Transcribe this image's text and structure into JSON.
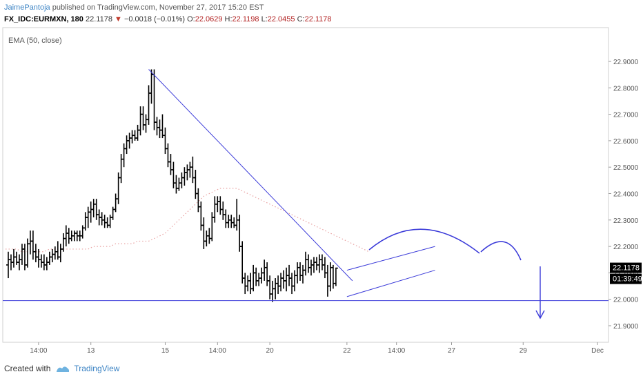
{
  "header": {
    "author": "JaimePantoja",
    "published": "published on TradingView.com, November 27, 2017 15:20 EST"
  },
  "quote": {
    "symbol": "FX_IDC:EURMXN, 180",
    "last": "22.1178",
    "change": "−0.0018 (−0.01%)",
    "o_label": "O:",
    "o": "22.0629",
    "h_label": "H:",
    "h": "22.1198",
    "l_label": "L:",
    "l": "22.0455",
    "c_label": "C:",
    "c": "22.1178"
  },
  "indicator_label": "EMA (50, close)",
  "price_tag": "22.1178",
  "time_tag": "01:39:49",
  "footer": {
    "created": "Created with",
    "brand": "TradingView"
  },
  "colors": {
    "bar": "#000000",
    "drawing": "#3b3bd9",
    "ema": "#e8a0a0",
    "axis_text": "#555555",
    "grid": "#e6e6e6"
  },
  "chart_data": {
    "type": "ohlc",
    "title": "",
    "xlabel": "",
    "ylabel": "",
    "ylim": [
      21.85,
      22.95
    ],
    "y_ticks": [
      "22.9000",
      "22.8000",
      "22.7000",
      "22.6000",
      "22.5000",
      "22.4000",
      "22.3000",
      "22.2000",
      "22.1000",
      "22.0000",
      "21.9000"
    ],
    "x_ticks": [
      {
        "label": "14:00",
        "i": 12
      },
      {
        "label": "13",
        "i": 31
      },
      {
        "label": "15",
        "i": 58
      },
      {
        "label": "14:00",
        "i": 77
      },
      {
        "label": "20",
        "i": 96
      },
      {
        "label": "22",
        "i": 124
      },
      {
        "label": "14:00",
        "i": 142
      },
      {
        "label": "27",
        "i": 162
      },
      {
        "label": "29",
        "i": 188
      },
      {
        "label": "Dec",
        "i": 215
      }
    ],
    "bars": [
      {
        "o": 22.13,
        "h": 22.18,
        "l": 22.08,
        "c": 22.15
      },
      {
        "o": 22.15,
        "h": 22.17,
        "l": 22.11,
        "c": 22.14
      },
      {
        "o": 22.14,
        "h": 22.19,
        "l": 22.12,
        "c": 22.16
      },
      {
        "o": 22.16,
        "h": 22.18,
        "l": 22.13,
        "c": 22.14
      },
      {
        "o": 22.14,
        "h": 22.17,
        "l": 22.11,
        "c": 22.15
      },
      {
        "o": 22.15,
        "h": 22.21,
        "l": 22.13,
        "c": 22.19
      },
      {
        "o": 22.19,
        "h": 22.21,
        "l": 22.11,
        "c": 22.13
      },
      {
        "o": 22.13,
        "h": 22.23,
        "l": 22.12,
        "c": 22.21
      },
      {
        "o": 22.21,
        "h": 22.26,
        "l": 22.17,
        "c": 22.22
      },
      {
        "o": 22.22,
        "h": 22.26,
        "l": 22.15,
        "c": 22.18
      },
      {
        "o": 22.18,
        "h": 22.21,
        "l": 22.14,
        "c": 22.16
      },
      {
        "o": 22.16,
        "h": 22.19,
        "l": 22.12,
        "c": 22.15
      },
      {
        "o": 22.15,
        "h": 22.17,
        "l": 22.12,
        "c": 22.14
      },
      {
        "o": 22.14,
        "h": 22.17,
        "l": 22.11,
        "c": 22.13
      },
      {
        "o": 22.13,
        "h": 22.16,
        "l": 22.11,
        "c": 22.14
      },
      {
        "o": 22.14,
        "h": 22.18,
        "l": 22.13,
        "c": 22.16
      },
      {
        "o": 22.16,
        "h": 22.19,
        "l": 22.14,
        "c": 22.17
      },
      {
        "o": 22.17,
        "h": 22.2,
        "l": 22.15,
        "c": 22.18
      },
      {
        "o": 22.18,
        "h": 22.22,
        "l": 22.15,
        "c": 22.16
      },
      {
        "o": 22.16,
        "h": 22.21,
        "l": 22.14,
        "c": 22.19
      },
      {
        "o": 22.19,
        "h": 22.25,
        "l": 22.18,
        "c": 22.23
      },
      {
        "o": 22.23,
        "h": 22.28,
        "l": 22.2,
        "c": 22.25
      },
      {
        "o": 22.25,
        "h": 22.27,
        "l": 22.21,
        "c": 22.23
      },
      {
        "o": 22.23,
        "h": 22.26,
        "l": 22.22,
        "c": 22.24
      },
      {
        "o": 22.24,
        "h": 22.26,
        "l": 22.22,
        "c": 22.25
      },
      {
        "o": 22.25,
        "h": 22.26,
        "l": 22.22,
        "c": 22.24
      },
      {
        "o": 22.24,
        "h": 22.26,
        "l": 22.22,
        "c": 22.24
      },
      {
        "o": 22.24,
        "h": 22.28,
        "l": 22.23,
        "c": 22.27
      },
      {
        "o": 22.27,
        "h": 22.33,
        "l": 22.26,
        "c": 22.31
      },
      {
        "o": 22.31,
        "h": 22.35,
        "l": 22.27,
        "c": 22.33
      },
      {
        "o": 22.33,
        "h": 22.37,
        "l": 22.29,
        "c": 22.34
      },
      {
        "o": 22.34,
        "h": 22.38,
        "l": 22.31,
        "c": 22.36
      },
      {
        "o": 22.36,
        "h": 22.38,
        "l": 22.3,
        "c": 22.32
      },
      {
        "o": 22.32,
        "h": 22.34,
        "l": 22.28,
        "c": 22.31
      },
      {
        "o": 22.31,
        "h": 22.33,
        "l": 22.28,
        "c": 22.3
      },
      {
        "o": 22.3,
        "h": 22.32,
        "l": 22.27,
        "c": 22.29
      },
      {
        "o": 22.29,
        "h": 22.31,
        "l": 22.27,
        "c": 22.28
      },
      {
        "o": 22.28,
        "h": 22.32,
        "l": 22.27,
        "c": 22.31
      },
      {
        "o": 22.31,
        "h": 22.35,
        "l": 22.3,
        "c": 22.34
      },
      {
        "o": 22.34,
        "h": 22.4,
        "l": 22.33,
        "c": 22.38
      },
      {
        "o": 22.38,
        "h": 22.48,
        "l": 22.36,
        "c": 22.46
      },
      {
        "o": 22.46,
        "h": 22.55,
        "l": 22.44,
        "c": 22.53
      },
      {
        "o": 22.53,
        "h": 22.59,
        "l": 22.5,
        "c": 22.57
      },
      {
        "o": 22.57,
        "h": 22.62,
        "l": 22.55,
        "c": 22.6
      },
      {
        "o": 22.6,
        "h": 22.63,
        "l": 22.57,
        "c": 22.61
      },
      {
        "o": 22.61,
        "h": 22.64,
        "l": 22.59,
        "c": 22.62
      },
      {
        "o": 22.62,
        "h": 22.64,
        "l": 22.6,
        "c": 22.61
      },
      {
        "o": 22.61,
        "h": 22.66,
        "l": 22.6,
        "c": 22.64
      },
      {
        "o": 22.64,
        "h": 22.73,
        "l": 22.62,
        "c": 22.7
      },
      {
        "o": 22.7,
        "h": 22.73,
        "l": 22.64,
        "c": 22.66
      },
      {
        "o": 22.66,
        "h": 22.7,
        "l": 22.63,
        "c": 22.68
      },
      {
        "o": 22.68,
        "h": 22.81,
        "l": 22.66,
        "c": 22.78
      },
      {
        "o": 22.78,
        "h": 22.87,
        "l": 22.74,
        "c": 22.85
      },
      {
        "o": 22.85,
        "h": 22.87,
        "l": 22.64,
        "c": 22.67
      },
      {
        "o": 22.67,
        "h": 22.69,
        "l": 22.62,
        "c": 22.65
      },
      {
        "o": 22.65,
        "h": 22.68,
        "l": 22.61,
        "c": 22.64
      },
      {
        "o": 22.64,
        "h": 22.7,
        "l": 22.61,
        "c": 22.62
      },
      {
        "o": 22.62,
        "h": 22.65,
        "l": 22.55,
        "c": 22.57
      },
      {
        "o": 22.57,
        "h": 22.59,
        "l": 22.5,
        "c": 22.52
      },
      {
        "o": 22.52,
        "h": 22.55,
        "l": 22.47,
        "c": 22.49
      },
      {
        "o": 22.49,
        "h": 22.52,
        "l": 22.42,
        "c": 22.44
      },
      {
        "o": 22.44,
        "h": 22.47,
        "l": 22.4,
        "c": 22.42
      },
      {
        "o": 22.42,
        "h": 22.46,
        "l": 22.41,
        "c": 22.44
      },
      {
        "o": 22.44,
        "h": 22.48,
        "l": 22.42,
        "c": 22.46
      },
      {
        "o": 22.46,
        "h": 22.5,
        "l": 22.43,
        "c": 22.48
      },
      {
        "o": 22.48,
        "h": 22.51,
        "l": 22.45,
        "c": 22.49
      },
      {
        "o": 22.49,
        "h": 22.52,
        "l": 22.46,
        "c": 22.5
      },
      {
        "o": 22.5,
        "h": 22.54,
        "l": 22.44,
        "c": 22.46
      },
      {
        "o": 22.46,
        "h": 22.49,
        "l": 22.38,
        "c": 22.4
      },
      {
        "o": 22.4,
        "h": 22.42,
        "l": 22.33,
        "c": 22.35
      },
      {
        "o": 22.35,
        "h": 22.37,
        "l": 22.26,
        "c": 22.28
      },
      {
        "o": 22.28,
        "h": 22.31,
        "l": 22.19,
        "c": 22.22
      },
      {
        "o": 22.22,
        "h": 22.26,
        "l": 22.2,
        "c": 22.24
      },
      {
        "o": 22.24,
        "h": 22.27,
        "l": 22.21,
        "c": 22.23
      },
      {
        "o": 22.23,
        "h": 22.33,
        "l": 22.22,
        "c": 22.31
      },
      {
        "o": 22.31,
        "h": 22.39,
        "l": 22.29,
        "c": 22.36
      },
      {
        "o": 22.36,
        "h": 22.39,
        "l": 22.33,
        "c": 22.37
      },
      {
        "o": 22.37,
        "h": 22.39,
        "l": 22.32,
        "c": 22.34
      },
      {
        "o": 22.34,
        "h": 22.37,
        "l": 22.3,
        "c": 22.32
      },
      {
        "o": 22.32,
        "h": 22.34,
        "l": 22.27,
        "c": 22.29
      },
      {
        "o": 22.29,
        "h": 22.32,
        "l": 22.27,
        "c": 22.3
      },
      {
        "o": 22.3,
        "h": 22.32,
        "l": 22.27,
        "c": 22.29
      },
      {
        "o": 22.29,
        "h": 22.31,
        "l": 22.27,
        "c": 22.28
      },
      {
        "o": 22.28,
        "h": 22.38,
        "l": 22.26,
        "c": 22.3
      },
      {
        "o": 22.3,
        "h": 22.32,
        "l": 22.18,
        "c": 22.2
      },
      {
        "o": 22.2,
        "h": 22.22,
        "l": 22.06,
        "c": 22.08
      },
      {
        "o": 22.08,
        "h": 22.1,
        "l": 22.02,
        "c": 22.05
      },
      {
        "o": 22.05,
        "h": 22.09,
        "l": 22.03,
        "c": 22.07
      },
      {
        "o": 22.07,
        "h": 22.1,
        "l": 22.02,
        "c": 22.04
      },
      {
        "o": 22.04,
        "h": 22.13,
        "l": 22.03,
        "c": 22.1
      },
      {
        "o": 22.1,
        "h": 22.12,
        "l": 22.05,
        "c": 22.07
      },
      {
        "o": 22.07,
        "h": 22.1,
        "l": 22.05,
        "c": 22.08
      },
      {
        "o": 22.08,
        "h": 22.12,
        "l": 22.06,
        "c": 22.1
      },
      {
        "o": 22.1,
        "h": 22.15,
        "l": 22.07,
        "c": 22.12
      },
      {
        "o": 22.12,
        "h": 22.14,
        "l": 22.05,
        "c": 22.07
      },
      {
        "o": 22.07,
        "h": 22.09,
        "l": 22.0,
        "c": 22.02
      },
      {
        "o": 22.02,
        "h": 22.07,
        "l": 21.99,
        "c": 22.04
      },
      {
        "o": 22.04,
        "h": 22.08,
        "l": 22.0,
        "c": 22.06
      },
      {
        "o": 22.06,
        "h": 22.09,
        "l": 22.02,
        "c": 22.05
      },
      {
        "o": 22.05,
        "h": 22.1,
        "l": 22.03,
        "c": 22.08
      },
      {
        "o": 22.08,
        "h": 22.11,
        "l": 22.04,
        "c": 22.07
      },
      {
        "o": 22.07,
        "h": 22.12,
        "l": 22.03,
        "c": 22.09
      },
      {
        "o": 22.09,
        "h": 22.13,
        "l": 22.05,
        "c": 22.08
      },
      {
        "o": 22.08,
        "h": 22.1,
        "l": 22.02,
        "c": 22.05
      },
      {
        "o": 22.05,
        "h": 22.11,
        "l": 22.03,
        "c": 22.09
      },
      {
        "o": 22.09,
        "h": 22.14,
        "l": 22.06,
        "c": 22.12
      },
      {
        "o": 22.12,
        "h": 22.14,
        "l": 22.07,
        "c": 22.09
      },
      {
        "o": 22.09,
        "h": 22.13,
        "l": 22.06,
        "c": 22.11
      },
      {
        "o": 22.11,
        "h": 22.18,
        "l": 22.09,
        "c": 22.15
      },
      {
        "o": 22.15,
        "h": 22.17,
        "l": 22.1,
        "c": 22.12
      },
      {
        "o": 22.12,
        "h": 22.15,
        "l": 22.09,
        "c": 22.13
      },
      {
        "o": 22.13,
        "h": 22.16,
        "l": 22.1,
        "c": 22.14
      },
      {
        "o": 22.14,
        "h": 22.16,
        "l": 22.11,
        "c": 22.13
      },
      {
        "o": 22.13,
        "h": 22.17,
        "l": 22.1,
        "c": 22.15
      },
      {
        "o": 22.15,
        "h": 22.17,
        "l": 22.11,
        "c": 22.13
      },
      {
        "o": 22.13,
        "h": 22.16,
        "l": 22.08,
        "c": 22.1
      },
      {
        "o": 22.1,
        "h": 22.13,
        "l": 22.01,
        "c": 22.05
      },
      {
        "o": 22.05,
        "h": 22.14,
        "l": 22.03,
        "c": 22.12
      },
      {
        "o": 22.12,
        "h": 22.13,
        "l": 22.04,
        "c": 22.06
      },
      {
        "o": 22.06,
        "h": 22.12,
        "l": 22.05,
        "c": 22.1178
      }
    ],
    "ema": [
      22.19,
      22.19,
      22.19,
      22.18,
      22.18,
      22.18,
      22.18,
      22.18,
      22.19,
      22.19,
      22.19,
      22.19,
      22.19,
      22.19,
      22.19,
      22.19,
      22.2,
      22.2,
      22.2,
      22.2,
      22.21,
      22.21,
      22.21,
      22.21,
      22.22,
      22.22,
      22.22,
      22.23,
      22.24,
      22.25,
      22.27,
      22.29,
      22.31,
      22.33,
      22.35,
      22.37,
      22.39,
      22.4,
      22.41,
      22.42,
      22.42,
      22.42,
      22.42,
      22.41,
      22.4,
      22.39,
      22.38,
      22.37,
      22.36,
      22.35,
      22.34,
      22.33,
      22.32,
      22.31,
      22.3,
      22.29,
      22.28,
      22.27,
      22.26,
      22.25,
      22.24,
      22.23,
      22.22,
      22.21,
      22.2,
      22.19,
      22.18
    ],
    "ema_start_i": 0,
    "ema_step": 2,
    "support_level": 21.995,
    "trendline": [
      {
        "i": 52,
        "p": 22.87
      },
      {
        "i": 126,
        "p": 22.07
      }
    ],
    "channel_upper": [
      {
        "i": 124,
        "p": 22.11
      },
      {
        "i": 156,
        "p": 22.2
      }
    ],
    "channel_lower": [
      {
        "i": 124,
        "p": 22.01
      },
      {
        "i": 156,
        "p": 22.11
      }
    ],
    "current_price": 22.1178
  }
}
